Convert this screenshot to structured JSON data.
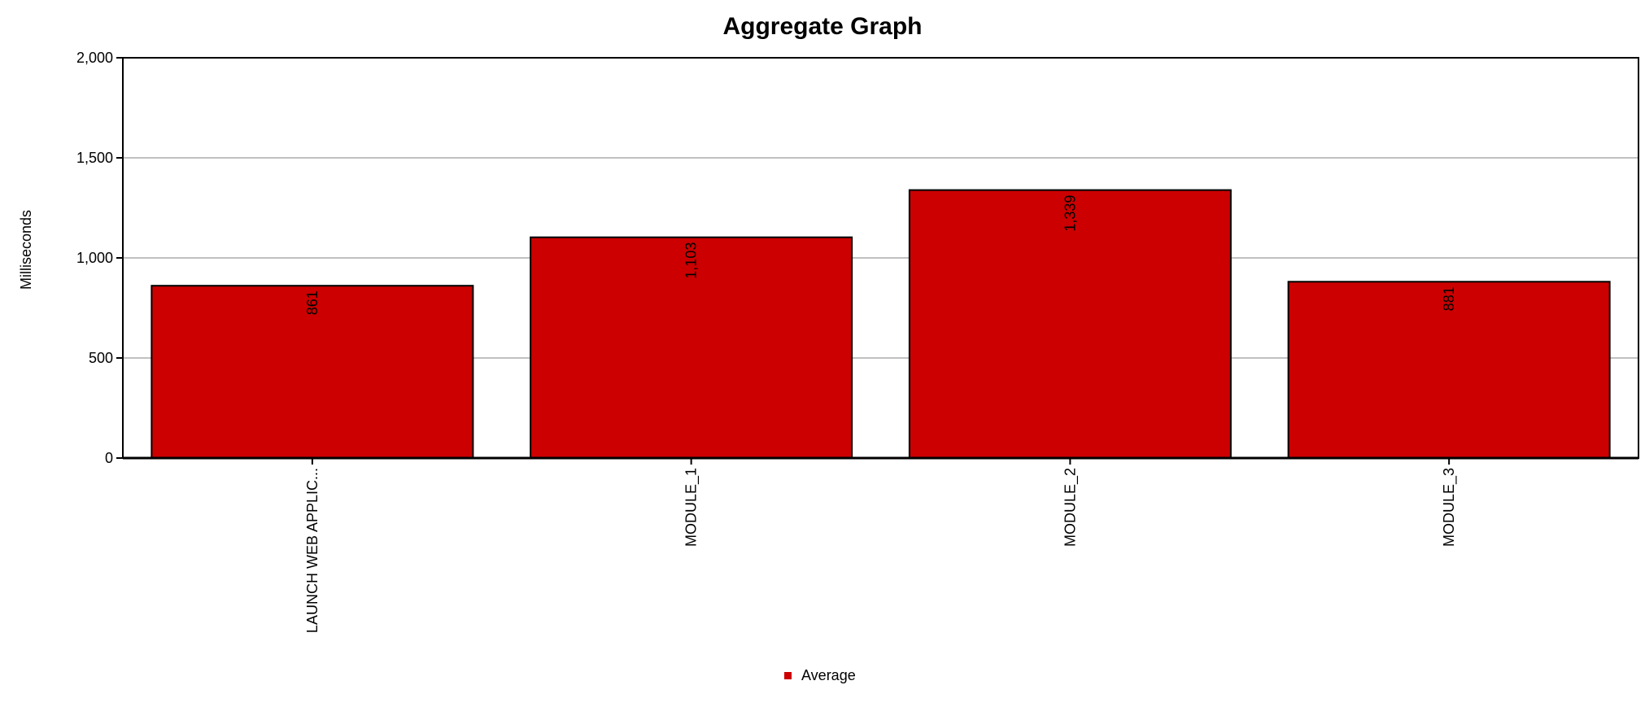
{
  "chart_data": {
    "type": "bar",
    "title": "Aggregate Graph",
    "xlabel": "",
    "ylabel": "Milliseconds",
    "categories": [
      "LAUNCH WEB APPLIC...",
      "MODULE_1",
      "MODULE_2",
      "MODULE_3"
    ],
    "series": [
      {
        "name": "Average",
        "values": [
          861,
          1103,
          1339,
          881
        ],
        "value_labels": [
          "861",
          "1,103",
          "1,339",
          "881"
        ],
        "color": "#cc0000"
      }
    ],
    "ylim": [
      0,
      2000
    ],
    "yticks": [
      0,
      500,
      1000,
      1500,
      2000
    ],
    "ytick_labels": [
      "0",
      "500",
      "1,000",
      "1,500",
      "2,000"
    ],
    "grid": "horizontal",
    "legend_position": "bottom-center",
    "grid_color": "#c0c0c0",
    "axis_color": "#000000"
  }
}
